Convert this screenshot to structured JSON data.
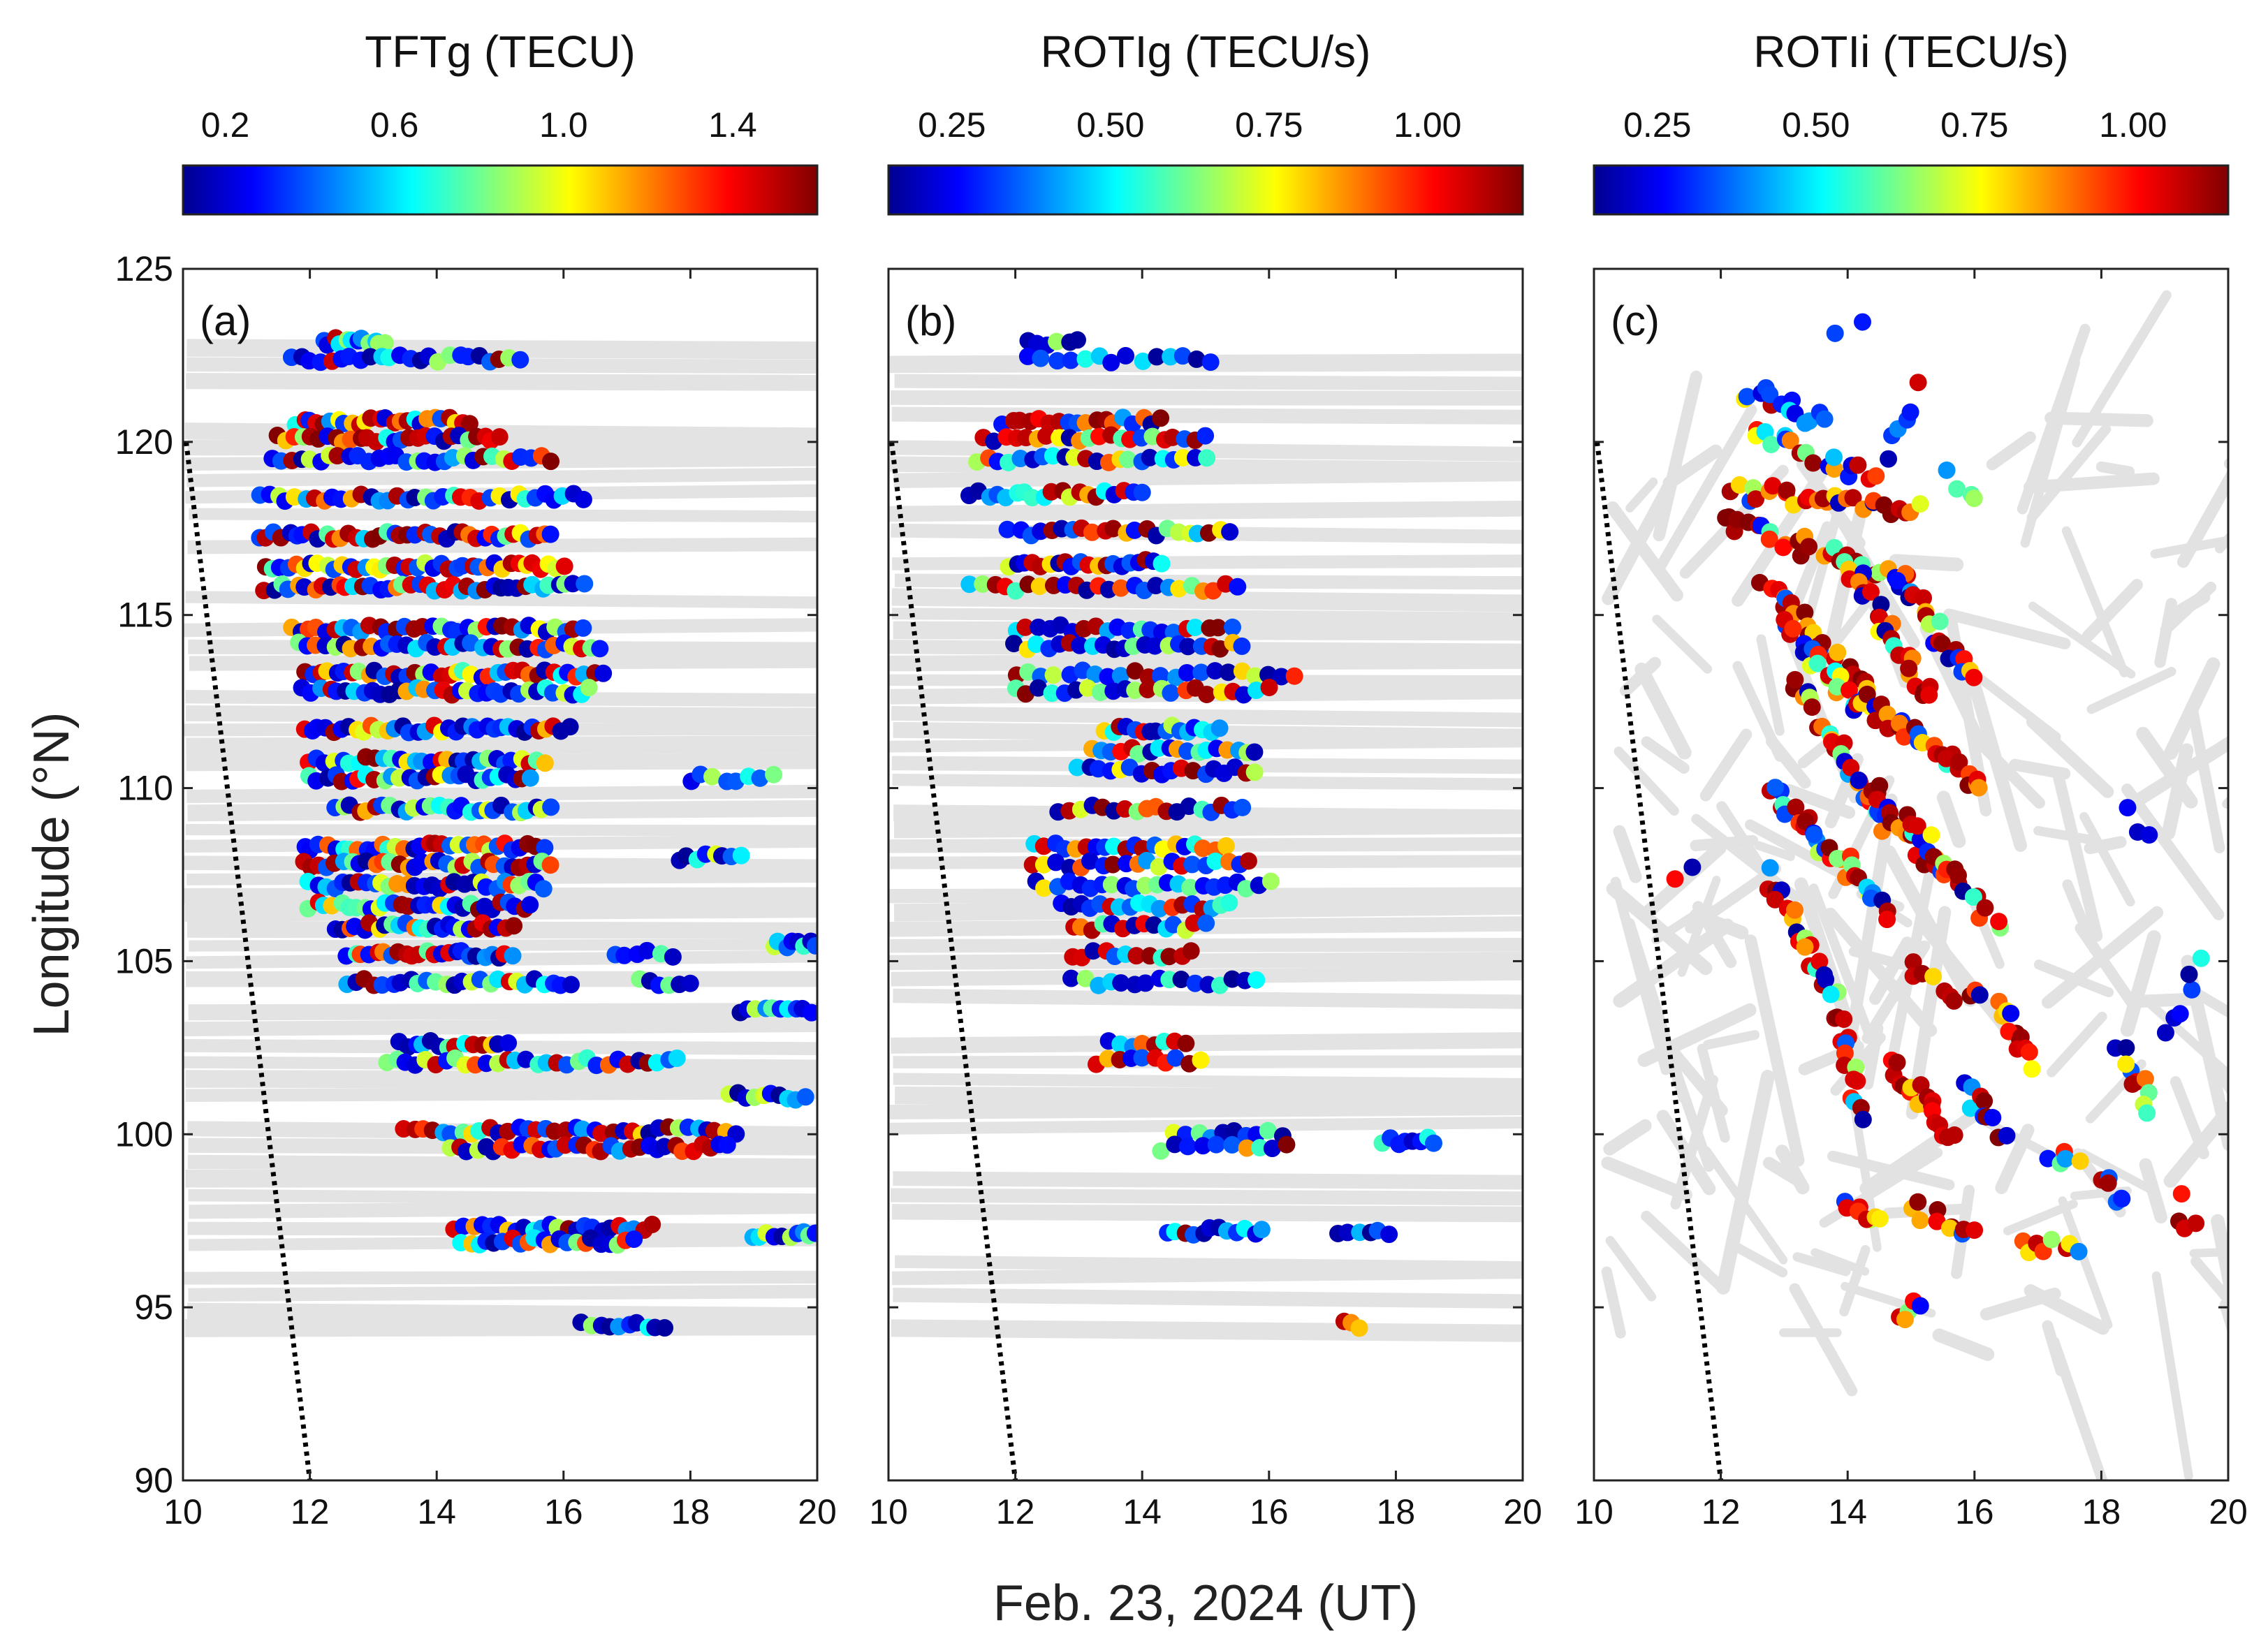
{
  "figure": {
    "xlabel": "Feb. 23, 2024 (UT)",
    "ylabel": "Longitude (°N)"
  },
  "chart_data": [
    {
      "type": "scatter",
      "panel_label": "(a)",
      "colorbar": {
        "title": "TFTg (TECU)",
        "range": [
          0.1,
          1.6
        ],
        "ticks": [
          0.2,
          0.6,
          1.0,
          1.4
        ],
        "tick_labels": [
          "0.2",
          "0.6",
          "1.0",
          "1.4"
        ],
        "colormap": "jet"
      },
      "xlim": [
        10,
        20
      ],
      "ylim": [
        90,
        125
      ],
      "xticks": [
        10,
        12,
        14,
        16,
        18,
        20
      ],
      "xtick_labels": [
        "10",
        "12",
        "14",
        "16",
        "18",
        "20"
      ],
      "yticks": [
        90,
        95,
        100,
        105,
        110,
        115,
        120,
        125
      ],
      "ytick_labels": [
        "90",
        "95",
        "100",
        "105",
        "110",
        "115",
        "120",
        "125"
      ],
      "terminator": {
        "x": [
          10.05,
          12.0
        ],
        "y": [
          120,
          90
        ]
      },
      "background_tracks": "horizontal",
      "clusters": [
        {
          "x0": 12.2,
          "x1": 13.2,
          "y": 122.9,
          "n": 12,
          "dense": 0.2
        },
        {
          "x0": 11.7,
          "x1": 15.3,
          "y": 122.4,
          "n": 24,
          "dense": 0.1
        },
        {
          "x0": 11.8,
          "x1": 14.5,
          "y": 120.6,
          "n": 26,
          "dense": 0.5
        },
        {
          "x0": 11.5,
          "x1": 15.0,
          "y": 120.1,
          "n": 28,
          "dense": 0.55
        },
        {
          "x0": 11.4,
          "x1": 15.8,
          "y": 119.5,
          "n": 30,
          "dense": 0.25
        },
        {
          "x0": 11.2,
          "x1": 16.3,
          "y": 118.4,
          "n": 36,
          "dense": 0.3
        },
        {
          "x0": 11.2,
          "x1": 15.8,
          "y": 117.3,
          "n": 40,
          "dense": 0.55
        },
        {
          "x0": 11.3,
          "x1": 16.0,
          "y": 116.4,
          "n": 40,
          "dense": 0.45
        },
        {
          "x0": 11.3,
          "x1": 16.3,
          "y": 115.8,
          "n": 40,
          "dense": 0.35
        },
        {
          "x0": 11.7,
          "x1": 16.3,
          "y": 114.6,
          "n": 34,
          "dense": 0.35
        },
        {
          "x0": 11.8,
          "x1": 16.6,
          "y": 114.1,
          "n": 34,
          "dense": 0.3
        },
        {
          "x0": 11.9,
          "x1": 16.6,
          "y": 113.3,
          "n": 38,
          "dense": 0.45
        },
        {
          "x0": 11.9,
          "x1": 16.4,
          "y": 112.8,
          "n": 34,
          "dense": 0.3
        },
        {
          "x0": 11.9,
          "x1": 16.1,
          "y": 111.7,
          "n": 36,
          "dense": 0.35
        },
        {
          "x0": 12.0,
          "x1": 15.7,
          "y": 110.8,
          "n": 30,
          "dense": 0.3
        },
        {
          "x0": 12.0,
          "x1": 15.5,
          "y": 110.3,
          "n": 28,
          "dense": 0.25
        },
        {
          "x0": 12.4,
          "x1": 15.8,
          "y": 109.4,
          "n": 28,
          "dense": 0.1
        },
        {
          "x0": 11.9,
          "x1": 15.7,
          "y": 108.3,
          "n": 32,
          "dense": 0.5
        },
        {
          "x0": 11.9,
          "x1": 15.8,
          "y": 107.8,
          "n": 32,
          "dense": 0.45
        },
        {
          "x0": 12.0,
          "x1": 15.7,
          "y": 107.2,
          "n": 30,
          "dense": 0.2
        },
        {
          "x0": 12.0,
          "x1": 15.5,
          "y": 106.6,
          "n": 30,
          "dense": 0.25
        },
        {
          "x0": 12.4,
          "x1": 15.2,
          "y": 106.0,
          "n": 26,
          "dense": 0.5
        },
        {
          "x0": 12.6,
          "x1": 15.2,
          "y": 105.2,
          "n": 24,
          "dense": 0.6
        },
        {
          "x0": 12.6,
          "x1": 16.1,
          "y": 104.4,
          "n": 26,
          "dense": 0.1
        },
        {
          "x0": 13.4,
          "x1": 15.1,
          "y": 102.6,
          "n": 14,
          "dense": 0.3
        },
        {
          "x0": 13.2,
          "x1": 17.8,
          "y": 102.1,
          "n": 30,
          "dense": 0.35
        },
        {
          "x0": 13.5,
          "x1": 18.7,
          "y": 100.1,
          "n": 36,
          "dense": 0.45
        },
        {
          "x0": 14.2,
          "x1": 18.6,
          "y": 99.6,
          "n": 32,
          "dense": 0.4
        },
        {
          "x0": 14.3,
          "x1": 17.4,
          "y": 97.3,
          "n": 24,
          "dense": 0.3
        },
        {
          "x0": 14.4,
          "x1": 17.1,
          "y": 96.9,
          "n": 22,
          "dense": 0.2
        },
        {
          "x0": 16.3,
          "x1": 17.6,
          "y": 94.5,
          "n": 10,
          "dense": 0.1
        },
        {
          "x0": 16.8,
          "x1": 17.7,
          "y": 105.2,
          "n": 6,
          "dense": 0.0
        },
        {
          "x0": 17.2,
          "x1": 18.0,
          "y": 104.4,
          "n": 6,
          "dense": 0.0
        },
        {
          "x0": 17.8,
          "x1": 18.8,
          "y": 108.0,
          "n": 8,
          "dense": 0.0
        },
        {
          "x0": 18.0,
          "x1": 19.3,
          "y": 110.3,
          "n": 8,
          "dense": 0.0
        },
        {
          "x0": 18.8,
          "x1": 19.9,
          "y": 103.6,
          "n": 10,
          "dense": 0.0
        },
        {
          "x0": 18.6,
          "x1": 19.8,
          "y": 101.1,
          "n": 10,
          "dense": 0.0
        },
        {
          "x0": 19.0,
          "x1": 20.0,
          "y": 97.1,
          "n": 10,
          "dense": 0.0
        },
        {
          "x0": 19.3,
          "x1": 20.0,
          "y": 105.5,
          "n": 8,
          "dense": 0.0
        }
      ]
    },
    {
      "type": "scatter",
      "panel_label": "(b)",
      "colorbar": {
        "title": "ROTIg (TECU/s)",
        "range": [
          0.15,
          1.15
        ],
        "ticks": [
          0.25,
          0.5,
          0.75,
          1.0
        ],
        "tick_labels": [
          "0.25",
          "0.50",
          "0.75",
          "1.00"
        ],
        "colormap": "jet"
      },
      "xlim": [
        10,
        20
      ],
      "ylim": [
        90,
        125
      ],
      "xticks": [
        10,
        12,
        14,
        16,
        18,
        20
      ],
      "xtick_labels": [
        "10",
        "12",
        "14",
        "16",
        "18",
        "20"
      ],
      "yticks": [
        90,
        95,
        100,
        105,
        110,
        115,
        120,
        125
      ],
      "ytick_labels": [
        "90",
        "95",
        "100",
        "105",
        "110",
        "115",
        "120",
        "125"
      ],
      "terminator": {
        "x": [
          10.05,
          12.0
        ],
        "y": [
          120,
          90
        ]
      },
      "background_tracks": "horizontal",
      "clusters": [
        {
          "x0": 12.2,
          "x1": 13.0,
          "y": 122.9,
          "n": 6,
          "dense": 0.1
        },
        {
          "x0": 12.2,
          "x1": 15.1,
          "y": 122.4,
          "n": 14,
          "dense": 0.1
        },
        {
          "x0": 11.8,
          "x1": 14.3,
          "y": 120.6,
          "n": 18,
          "dense": 0.5
        },
        {
          "x0": 11.5,
          "x1": 15.0,
          "y": 120.1,
          "n": 22,
          "dense": 0.45
        },
        {
          "x0": 11.4,
          "x1": 15.0,
          "y": 119.5,
          "n": 22,
          "dense": 0.4
        },
        {
          "x0": 11.3,
          "x1": 14.0,
          "y": 118.5,
          "n": 20,
          "dense": 0.3
        },
        {
          "x0": 11.9,
          "x1": 15.4,
          "y": 117.4,
          "n": 22,
          "dense": 0.3
        },
        {
          "x0": 11.9,
          "x1": 14.3,
          "y": 116.5,
          "n": 20,
          "dense": 0.5
        },
        {
          "x0": 11.3,
          "x1": 15.5,
          "y": 115.8,
          "n": 24,
          "dense": 0.45
        },
        {
          "x0": 12.0,
          "x1": 15.4,
          "y": 114.6,
          "n": 20,
          "dense": 0.35
        },
        {
          "x0": 12.0,
          "x1": 15.6,
          "y": 114.1,
          "n": 22,
          "dense": 0.2
        },
        {
          "x0": 12.0,
          "x1": 16.4,
          "y": 113.3,
          "n": 22,
          "dense": 0.3
        },
        {
          "x0": 12.0,
          "x1": 16.0,
          "y": 112.8,
          "n": 22,
          "dense": 0.3
        },
        {
          "x0": 13.4,
          "x1": 15.2,
          "y": 111.7,
          "n": 16,
          "dense": 0.3
        },
        {
          "x0": 13.2,
          "x1": 15.8,
          "y": 111.1,
          "n": 18,
          "dense": 0.35
        },
        {
          "x0": 13.0,
          "x1": 15.8,
          "y": 110.5,
          "n": 18,
          "dense": 0.3
        },
        {
          "x0": 12.7,
          "x1": 15.6,
          "y": 109.4,
          "n": 18,
          "dense": 0.15
        },
        {
          "x0": 12.3,
          "x1": 15.3,
          "y": 108.3,
          "n": 20,
          "dense": 0.4
        },
        {
          "x0": 12.3,
          "x1": 15.7,
          "y": 107.8,
          "n": 20,
          "dense": 0.35
        },
        {
          "x0": 12.3,
          "x1": 16.0,
          "y": 107.2,
          "n": 22,
          "dense": 0.2
        },
        {
          "x0": 12.7,
          "x1": 15.4,
          "y": 106.6,
          "n": 18,
          "dense": 0.2
        },
        {
          "x0": 12.9,
          "x1": 15.0,
          "y": 106.0,
          "n": 14,
          "dense": 0.45
        },
        {
          "x0": 12.9,
          "x1": 14.8,
          "y": 105.2,
          "n": 12,
          "dense": 0.55
        },
        {
          "x0": 12.9,
          "x1": 15.8,
          "y": 104.4,
          "n": 16,
          "dense": 0.1
        },
        {
          "x0": 13.5,
          "x1": 14.7,
          "y": 102.6,
          "n": 8,
          "dense": 0.2
        },
        {
          "x0": 13.3,
          "x1": 14.9,
          "y": 102.1,
          "n": 10,
          "dense": 0.5
        },
        {
          "x0": 14.5,
          "x1": 16.2,
          "y": 100.0,
          "n": 10,
          "dense": 0.2
        },
        {
          "x0": 14.3,
          "x1": 16.3,
          "y": 99.6,
          "n": 10,
          "dense": 0.3
        },
        {
          "x0": 14.4,
          "x1": 15.9,
          "y": 97.2,
          "n": 12,
          "dense": 0.1
        },
        {
          "x0": 17.1,
          "x1": 17.9,
          "y": 97.2,
          "n": 6,
          "dense": 0.1
        },
        {
          "x0": 17.8,
          "x1": 18.6,
          "y": 99.8,
          "n": 8,
          "dense": 0.1
        },
        {
          "x0": 17.2,
          "x1": 17.4,
          "y": 94.5,
          "n": 3,
          "dense": 1.0
        }
      ]
    },
    {
      "type": "scatter",
      "panel_label": "(c)",
      "colorbar": {
        "title": "ROTIi (TECU/s)",
        "range": [
          0.15,
          1.15
        ],
        "ticks": [
          0.25,
          0.5,
          0.75,
          1.0
        ],
        "tick_labels": [
          "0.25",
          "0.50",
          "0.75",
          "1.00"
        ],
        "colormap": "jet"
      },
      "xlim": [
        10,
        20
      ],
      "ylim": [
        90,
        125
      ],
      "xticks": [
        10,
        12,
        14,
        16,
        18,
        20
      ],
      "xtick_labels": [
        "10",
        "12",
        "14",
        "16",
        "18",
        "20"
      ],
      "yticks": [
        90,
        95,
        100,
        105,
        110,
        115,
        120,
        125
      ],
      "ytick_labels": [
        "90",
        "95",
        "100",
        "105",
        "110",
        "115",
        "120",
        "125"
      ],
      "terminator": {
        "x": [
          10.05,
          12.0
        ],
        "y": [
          120,
          90
        ]
      },
      "background_tracks": "tilted",
      "segments": [
        {
          "x0": 12.4,
          "y0": 121.5,
          "x1": 13.6,
          "y1": 120.6,
          "n": 14,
          "dense": 0.2
        },
        {
          "x0": 12.5,
          "y0": 120.3,
          "x1": 14.4,
          "y1": 118.9,
          "n": 18,
          "dense": 0.6
        },
        {
          "x0": 12.2,
          "y0": 118.6,
          "x1": 15.1,
          "y1": 118.0,
          "n": 28,
          "dense": 0.75
        },
        {
          "x0": 12.0,
          "y0": 117.8,
          "x1": 15.0,
          "y1": 116.0,
          "n": 30,
          "dense": 0.75
        },
        {
          "x0": 12.7,
          "y0": 116.0,
          "x1": 14.4,
          "y1": 112.4,
          "n": 28,
          "dense": 0.8
        },
        {
          "x0": 13.0,
          "y0": 114.8,
          "x1": 14.2,
          "y1": 112.2,
          "n": 22,
          "dense": 0.6
        },
        {
          "x0": 14.0,
          "y0": 116.5,
          "x1": 15.3,
          "y1": 112.5,
          "n": 26,
          "dense": 0.7
        },
        {
          "x0": 14.8,
          "y0": 116.0,
          "x1": 16.0,
          "y1": 113.0,
          "n": 20,
          "dense": 0.6
        },
        {
          "x0": 14.3,
          "y0": 112.5,
          "x1": 16.1,
          "y1": 110.0,
          "n": 28,
          "dense": 0.7
        },
        {
          "x0": 13.2,
          "y0": 113.0,
          "x1": 14.6,
          "y1": 109.0,
          "n": 26,
          "dense": 0.6
        },
        {
          "x0": 12.8,
          "y0": 110.0,
          "x1": 14.6,
          "y1": 106.5,
          "n": 32,
          "dense": 0.6
        },
        {
          "x0": 14.2,
          "y0": 110.5,
          "x1": 15.5,
          "y1": 107.5,
          "n": 22,
          "dense": 0.7
        },
        {
          "x0": 12.7,
          "y0": 107.5,
          "x1": 13.8,
          "y1": 104.0,
          "n": 20,
          "dense": 0.4
        },
        {
          "x0": 15.0,
          "y0": 109.0,
          "x1": 16.4,
          "y1": 106.0,
          "n": 18,
          "dense": 0.5
        },
        {
          "x0": 15.0,
          "y0": 104.8,
          "x1": 16.1,
          "y1": 103.8,
          "n": 10,
          "dense": 0.9
        },
        {
          "x0": 13.8,
          "y0": 103.8,
          "x1": 14.2,
          "y1": 100.6,
          "n": 16,
          "dense": 0.85
        },
        {
          "x0": 14.7,
          "y0": 102.0,
          "x1": 15.6,
          "y1": 100.0,
          "n": 20,
          "dense": 0.9
        },
        {
          "x0": 16.4,
          "y0": 103.7,
          "x1": 16.9,
          "y1": 102.0,
          "n": 12,
          "dense": 0.7
        },
        {
          "x0": 15.8,
          "y0": 101.2,
          "x1": 16.5,
          "y1": 100.0,
          "n": 10,
          "dense": 0.3
        },
        {
          "x0": 14.0,
          "y0": 97.9,
          "x1": 14.5,
          "y1": 97.3,
          "n": 8,
          "dense": 0.5
        },
        {
          "x0": 15.0,
          "y0": 97.8,
          "x1": 16.0,
          "y1": 97.3,
          "n": 10,
          "dense": 0.8
        },
        {
          "x0": 16.8,
          "y0": 96.8,
          "x1": 17.6,
          "y1": 96.6,
          "n": 8,
          "dense": 0.9
        },
        {
          "x0": 17.2,
          "y0": 99.5,
          "x1": 17.6,
          "y1": 99.1,
          "n": 6,
          "dense": 0.4
        },
        {
          "x0": 18.0,
          "y0": 98.7,
          "x1": 18.4,
          "y1": 98.0,
          "n": 6,
          "dense": 0.6
        },
        {
          "x0": 18.3,
          "y0": 102.5,
          "x1": 18.8,
          "y1": 100.8,
          "n": 10,
          "dense": 0.4
        },
        {
          "x0": 19.1,
          "y0": 102.7,
          "x1": 19.5,
          "y1": 105.0,
          "n": 6,
          "dense": 0.0
        },
        {
          "x0": 18.5,
          "y0": 109.5,
          "x1": 18.7,
          "y1": 108.5,
          "n": 3,
          "dense": 0.0
        },
        {
          "x0": 14.8,
          "y0": 94.7,
          "x1": 15.1,
          "y1": 95.0,
          "n": 5,
          "dense": 0.7
        },
        {
          "x0": 14.6,
          "y0": 119.5,
          "x1": 15.1,
          "y1": 121.5,
          "n": 6,
          "dense": 0.1
        },
        {
          "x0": 15.6,
          "y0": 119.0,
          "x1": 16.0,
          "y1": 118.5,
          "n": 4,
          "dense": 0.1
        },
        {
          "x0": 13.8,
          "y0": 123.0,
          "x1": 14.3,
          "y1": 123.6,
          "n": 2,
          "dense": 0.0
        },
        {
          "x0": 19.2,
          "y0": 98.0,
          "x1": 19.5,
          "y1": 97.2,
          "n": 4,
          "dense": 0.3
        },
        {
          "x0": 11.3,
          "y0": 107.5,
          "x1": 11.5,
          "y1": 107.8,
          "n": 2,
          "dense": 0.5
        }
      ]
    }
  ]
}
